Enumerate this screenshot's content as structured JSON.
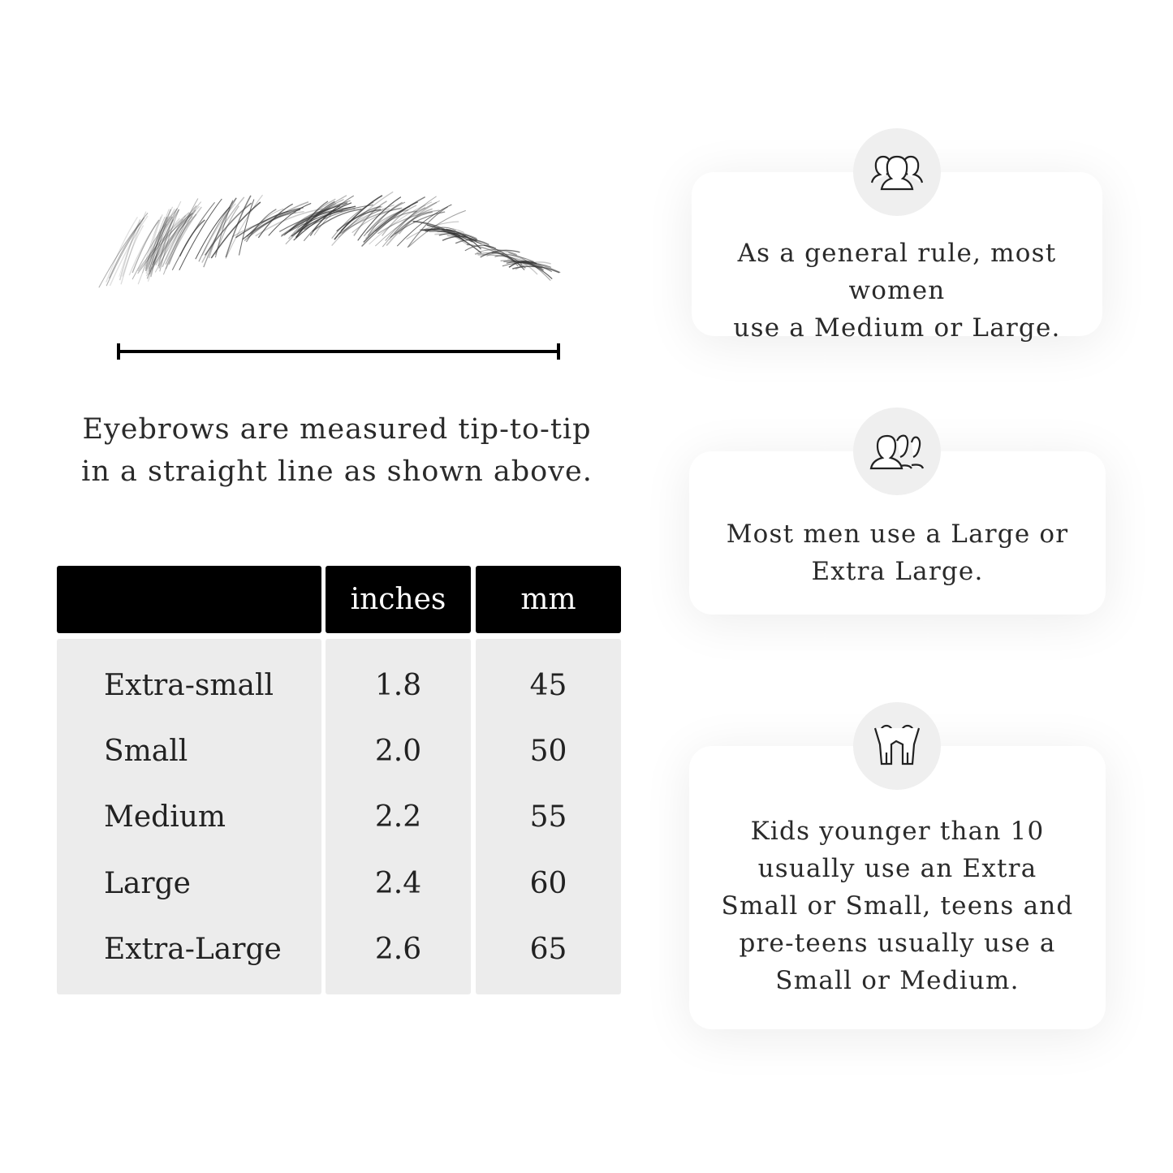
{
  "caption": {
    "line1": "Eyebrows are measured tip-to-tip",
    "line2": "in a straight line as shown above."
  },
  "table": {
    "headers": [
      "",
      "inches",
      "mm"
    ],
    "rows": [
      {
        "size": "Extra-small",
        "inches": "1.8",
        "mm": "45"
      },
      {
        "size": "Small",
        "inches": "2.0",
        "mm": "50"
      },
      {
        "size": "Medium",
        "inches": "2.2",
        "mm": "55"
      },
      {
        "size": "Large",
        "inches": "2.4",
        "mm": "60"
      },
      {
        "size": "Extra-Large",
        "inches": "2.6",
        "mm": "65"
      }
    ]
  },
  "cards": [
    {
      "icon": "women-group-icon",
      "lines": [
        "As a general rule, most women",
        "use a Medium or Large."
      ]
    },
    {
      "icon": "men-group-icon",
      "lines": [
        "Most men use a Large or",
        "Extra Large."
      ]
    },
    {
      "icon": "kids-icon",
      "lines": [
        "Kids younger than 10",
        "usually use an Extra",
        "Small or Small, teens and",
        "pre-teens usually use a",
        "Small or Medium."
      ]
    }
  ],
  "colors": {
    "header_bg": "#000000",
    "body_bg": "#ececec",
    "icon_circle": "#efefef"
  }
}
